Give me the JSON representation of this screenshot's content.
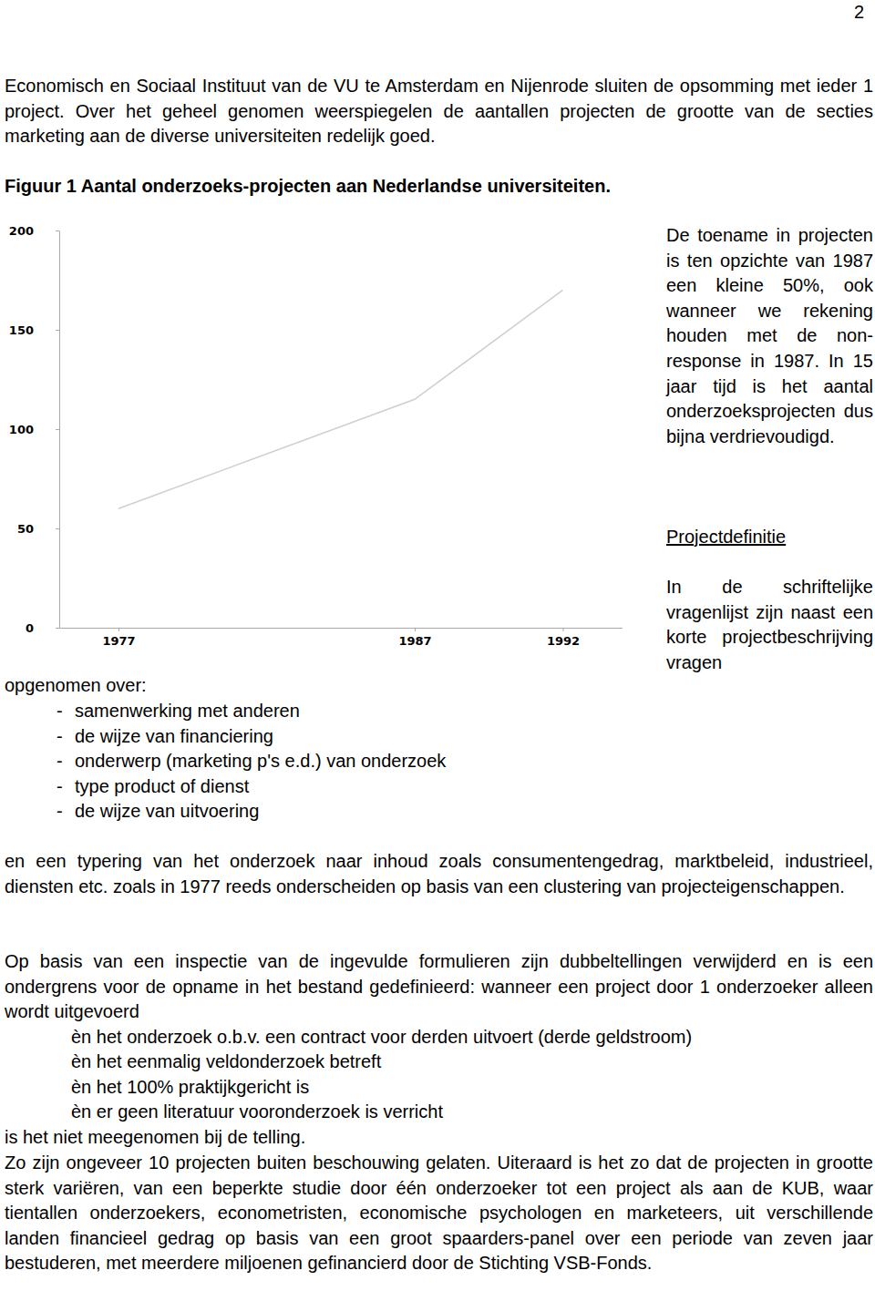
{
  "page_number": "2",
  "intro": "Economisch en Sociaal Instituut van de VU te Amsterdam en Nijenrode sluiten de opsomming met ieder 1 project. Over het geheel genomen weerspiegelen de aantallen projecten de grootte van de secties marketing aan de diverse universiteiten redelijk goed.",
  "chart_data": {
    "type": "line",
    "title": "Figuur 1 Aantal onderzoeks-projecten aan Nederlandse universiteiten.",
    "x": [
      1977,
      1987,
      1992
    ],
    "values": [
      60,
      115,
      170
    ],
    "color": "#cfcfcf",
    "xlim": [
      1975,
      1994
    ],
    "ylim": [
      0,
      200
    ],
    "xticks": [
      1977,
      1987,
      1992
    ],
    "yticks": [
      0,
      50,
      100,
      150,
      200
    ],
    "grid": false
  },
  "side_paragraph": "De toename in projecten is ten opzichte van 1987 een kleine 50%, ook wanneer we rekening houden met de non-response in 1987. In 15 jaar tijd is het aantal onderzoeksprojecten dus bijna verdrievoudigd.",
  "section_heading": "Projectdefinitie",
  "side_continuation": "In de schriftelijke vragenlijst zijn naast een korte projectbeschrijving vragen",
  "continuation": "opgenomen over:",
  "list_bullet": "-",
  "list_items": [
    "samenwerking met anderen",
    "de wijze van financiering",
    "onderwerp (marketing p's e.d.) van onderzoek",
    "type product of dienst",
    "de wijze van uitvoering"
  ],
  "paragraph_typering": "en een typering van het onderzoek naar inhoud zoals consumentengedrag, marktbeleid, industrieel, diensten etc. zoals in 1977 reeds onderscheiden op basis van een clustering van projecteigenschappen.",
  "paragraph_inspectie": "Op basis van een inspectie van de ingevulde formulieren zijn dubbeltellingen verwijderd en is een ondergrens voor de opname in het bestand gedefinieerd: wanneer een project door 1 onderzoeker alleen wordt uitgevoerd",
  "conditions": [
    "èn het onderzoek o.b.v. een contract voor derden uitvoert (derde geldstroom)",
    "èn het eenmalig veldonderzoek betreft",
    "èn het 100% praktijkgericht is",
    "èn er geen literatuur vooronderzoek is verricht"
  ],
  "conclusion_line": "is het niet meegenomen bij de telling.",
  "paragraph_final": "Zo zijn ongeveer 10 projecten buiten beschouwing gelaten. Uiteraard is het zo dat de projecten in grootte sterk variëren, van een beperkte studie door één onderzoeker tot een project als aan de KUB, waar tientallen onderzoekers, econometristen, economische psychologen en marketeers, uit verschillende landen financieel gedrag op basis van een groot spaarders-panel over een periode van zeven jaar bestuderen, met meerdere miljoenen gefinancierd door de Stichting VSB-Fonds."
}
